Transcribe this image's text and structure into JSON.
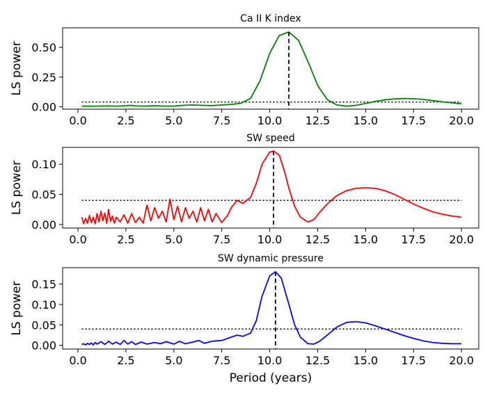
{
  "chart_data": [
    {
      "type": "line",
      "title": "Ca II K index",
      "xlabel": "",
      "ylabel": "LS power",
      "xlim": [
        -0.8,
        20.9
      ],
      "ylim": [
        -0.02,
        0.665
      ],
      "xticks": [
        0.0,
        2.5,
        5.0,
        7.5,
        10.0,
        12.5,
        15.0,
        17.5,
        20.0
      ],
      "xtick_labels": [
        "0.0",
        "2.5",
        "5.0",
        "7.5",
        "10.0",
        "12.5",
        "15.0",
        "17.5",
        "20.0"
      ],
      "yticks": [
        0.0,
        0.25,
        0.5
      ],
      "ytick_labels": [
        "0.00",
        "0.25",
        "0.50"
      ],
      "series_color": "#008000",
      "x": [
        0.2,
        0.5,
        1.0,
        1.5,
        2.0,
        2.5,
        2.7,
        3.0,
        3.5,
        4.0,
        4.5,
        5.0,
        5.5,
        6.0,
        6.5,
        7.0,
        7.5,
        8.0,
        8.5,
        9.0,
        9.5,
        10.0,
        10.5,
        11.0,
        11.5,
        12.0,
        12.5,
        13.0,
        13.5,
        14.0,
        14.5,
        15.0,
        15.5,
        16.0,
        16.5,
        17.0,
        17.5,
        18.0,
        18.5,
        19.0,
        19.5,
        20.0
      ],
      "y": [
        0.005,
        0.005,
        0.006,
        0.007,
        0.006,
        0.008,
        0.012,
        0.007,
        0.006,
        0.008,
        0.006,
        0.006,
        0.012,
        0.015,
        0.012,
        0.01,
        0.015,
        0.02,
        0.03,
        0.07,
        0.22,
        0.45,
        0.6,
        0.63,
        0.56,
        0.38,
        0.18,
        0.06,
        0.015,
        0.005,
        0.012,
        0.028,
        0.045,
        0.058,
        0.066,
        0.07,
        0.068,
        0.062,
        0.052,
        0.042,
        0.033,
        0.025
      ],
      "threshold": 0.04,
      "peak_period": 11.0
    },
    {
      "type": "line",
      "title": "SW speed",
      "xlabel": "",
      "ylabel": "LS power",
      "xlim": [
        -0.8,
        20.9
      ],
      "ylim": [
        -0.006,
        0.128
      ],
      "xticks": [
        0.0,
        2.5,
        5.0,
        7.5,
        10.0,
        12.5,
        15.0,
        17.5,
        20.0
      ],
      "xtick_labels": [
        "0.0",
        "2.5",
        "5.0",
        "7.5",
        "10.0",
        "12.5",
        "15.0",
        "17.5",
        "20.0"
      ],
      "yticks": [
        0.0,
        0.05,
        0.1
      ],
      "ytick_labels": [
        "0.00",
        "0.05",
        "0.10"
      ],
      "series_color": "#ff0000",
      "x": [
        0.2,
        0.3,
        0.4,
        0.5,
        0.6,
        0.7,
        0.8,
        0.9,
        1.0,
        1.1,
        1.2,
        1.3,
        1.4,
        1.5,
        1.6,
        1.7,
        1.8,
        1.9,
        2.0,
        2.2,
        2.4,
        2.6,
        2.8,
        3.0,
        3.2,
        3.4,
        3.6,
        3.8,
        4.0,
        4.2,
        4.4,
        4.6,
        4.8,
        5.0,
        5.2,
        5.4,
        5.6,
        5.8,
        6.0,
        6.2,
        6.4,
        6.6,
        6.8,
        7.0,
        7.2,
        7.5,
        7.8,
        8.0,
        8.3,
        8.6,
        9.0,
        9.3,
        9.6,
        10.0,
        10.2,
        10.5,
        10.8,
        11.0,
        11.3,
        11.6,
        12.0,
        12.3,
        12.6,
        13.0,
        13.5,
        14.0,
        14.5,
        15.0,
        15.5,
        16.0,
        16.5,
        17.0,
        17.5,
        18.0,
        18.5,
        19.0,
        19.5,
        20.0
      ],
      "y": [
        0.012,
        0.001,
        0.01,
        0.002,
        0.015,
        0.003,
        0.012,
        0.001,
        0.018,
        0.004,
        0.022,
        0.006,
        0.019,
        0.002,
        0.025,
        0.005,
        0.014,
        0.002,
        0.012,
        0.004,
        0.016,
        0.002,
        0.018,
        0.003,
        0.012,
        0.002,
        0.032,
        0.006,
        0.028,
        0.01,
        0.022,
        0.004,
        0.042,
        0.008,
        0.03,
        0.004,
        0.028,
        0.01,
        0.022,
        0.004,
        0.028,
        0.006,
        0.025,
        0.004,
        0.018,
        0.003,
        0.015,
        0.028,
        0.04,
        0.035,
        0.045,
        0.068,
        0.1,
        0.12,
        0.122,
        0.115,
        0.085,
        0.06,
        0.03,
        0.012,
        0.004,
        0.008,
        0.02,
        0.034,
        0.048,
        0.056,
        0.06,
        0.061,
        0.06,
        0.056,
        0.05,
        0.042,
        0.034,
        0.027,
        0.021,
        0.017,
        0.014,
        0.012
      ],
      "threshold": 0.04,
      "peak_period": 10.2
    },
    {
      "type": "line",
      "title": "SW dynamic pressure",
      "xlabel": "Period (years)",
      "ylabel": "LS power",
      "xlim": [
        -0.8,
        20.9
      ],
      "ylim": [
        -0.009,
        0.19
      ],
      "xticks": [
        0.0,
        2.5,
        5.0,
        7.5,
        10.0,
        12.5,
        15.0,
        17.5,
        20.0
      ],
      "xtick_labels": [
        "0.0",
        "2.5",
        "5.0",
        "7.5",
        "10.0",
        "12.5",
        "15.0",
        "17.5",
        "20.0"
      ],
      "yticks": [
        0.0,
        0.05,
        0.1,
        0.15
      ],
      "ytick_labels": [
        "0.00",
        "0.05",
        "0.10",
        "0.15"
      ],
      "series_color": "#0000ff",
      "x": [
        0.2,
        0.3,
        0.4,
        0.5,
        0.6,
        0.7,
        0.8,
        0.9,
        1.0,
        1.2,
        1.4,
        1.6,
        1.8,
        2.0,
        2.2,
        2.4,
        2.6,
        2.8,
        3.0,
        3.3,
        3.6,
        4.0,
        4.3,
        4.6,
        5.0,
        5.3,
        5.6,
        6.0,
        6.3,
        6.6,
        7.0,
        7.5,
        8.0,
        8.3,
        8.6,
        9.0,
        9.3,
        9.6,
        10.0,
        10.3,
        10.6,
        11.0,
        11.3,
        11.6,
        12.0,
        12.3,
        12.6,
        13.0,
        13.5,
        14.0,
        14.5,
        15.0,
        15.5,
        16.0,
        16.5,
        17.0,
        17.5,
        18.0,
        18.5,
        19.0,
        19.5,
        20.0
      ],
      "y": [
        0.002,
        0.004,
        0.001,
        0.005,
        0.002,
        0.006,
        0.001,
        0.007,
        0.003,
        0.009,
        0.002,
        0.01,
        0.003,
        0.008,
        0.002,
        0.012,
        0.003,
        0.009,
        0.002,
        0.008,
        0.003,
        0.007,
        0.004,
        0.009,
        0.003,
        0.01,
        0.004,
        0.008,
        0.012,
        0.005,
        0.01,
        0.012,
        0.02,
        0.025,
        0.022,
        0.03,
        0.06,
        0.12,
        0.17,
        0.18,
        0.165,
        0.1,
        0.05,
        0.02,
        0.004,
        0.003,
        0.01,
        0.025,
        0.045,
        0.056,
        0.058,
        0.055,
        0.048,
        0.04,
        0.032,
        0.024,
        0.017,
        0.011,
        0.007,
        0.005,
        0.004,
        0.004
      ],
      "threshold": 0.04,
      "peak_period": 10.3
    }
  ]
}
